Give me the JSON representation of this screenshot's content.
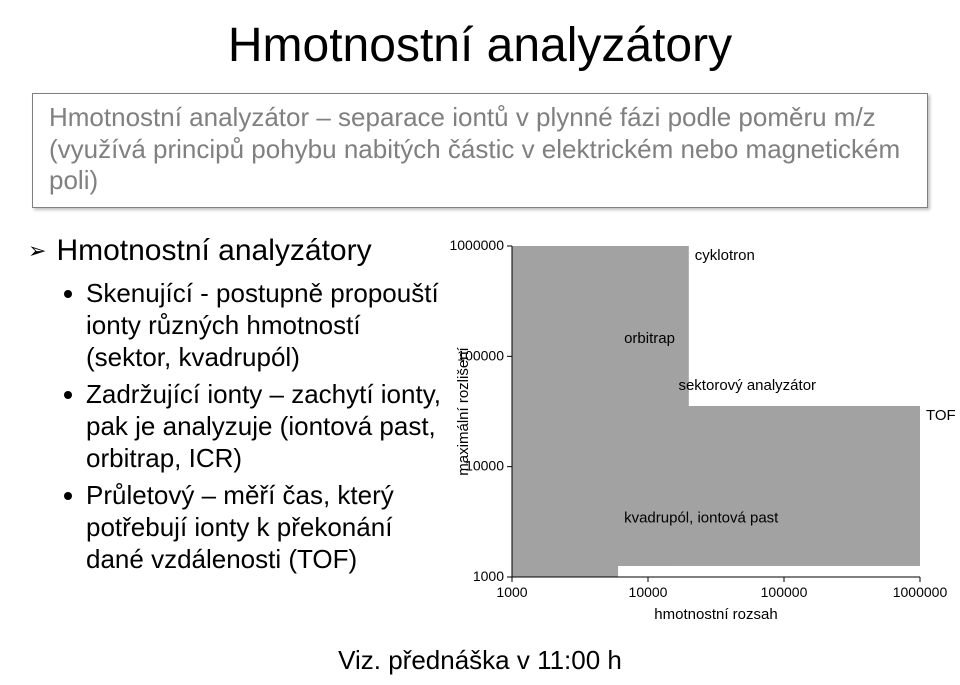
{
  "title": "Hmotnostní analyzátory",
  "subtitle": {
    "line1": "Hmotnostní analyzátor – separace iontů v plynné fázi podle poměru m/z",
    "line2": "(využívá principů pohybu nabitých částic v elektrickém nebo magnetickém poli)"
  },
  "left": {
    "heading": "Hmotnostní analyzátory",
    "bullets": [
      "Skenující - postupně propouští ionty různých hmotností (sektor, kvadrupól)",
      "Zadržující ionty – zachytí ionty, pak je analyzuje (iontová past, orbitrap, ICR)",
      "Průletový – měří čas, který potřebují ionty k překonání dané vzdálenosti (TOF)"
    ]
  },
  "footer": "Viz. přednáška v 11:00 h",
  "chart": {
    "x_label": "hmotnostní rozsah",
    "y_label": "maximální rozlišení",
    "y_ticks": [
      "1000",
      "10000",
      "100000",
      "1000000"
    ],
    "x_ticks": [
      "1000",
      "10000",
      "100000",
      "1000000"
    ],
    "log_min": 3,
    "log_max": 6,
    "bar_color": "#a2a2a2",
    "axis_color": "#000000",
    "tick_fontsize": 14,
    "label_fontsize": 15,
    "bar_label_fontsize": 15,
    "bars": [
      {
        "label": "cyklotron",
        "x_lo": 3.0,
        "x_hi": 4.3,
        "y_lo": 3.4,
        "y_hi": 6.0,
        "label_side": "right"
      },
      {
        "label": "orbitrap",
        "x_lo": 3.0,
        "x_hi": 3.78,
        "y_lo": 3.35,
        "y_hi": 5.25,
        "label_side": "right"
      },
      {
        "label": "sektorový analyzátor",
        "x_lo": 3.0,
        "x_hi": 4.18,
        "y_lo": 3.1,
        "y_hi": 4.82,
        "label_side": "right"
      },
      {
        "label": "TOF",
        "x_lo": 3.0,
        "x_hi": 6.0,
        "y_lo": 3.1,
        "y_hi": 4.55,
        "label_side": "right"
      },
      {
        "label": "kvadrupól, iontová past",
        "x_lo": 3.0,
        "x_hi": 3.78,
        "y_lo": 3.0,
        "y_hi": 3.62,
        "label_side": "right"
      }
    ]
  }
}
